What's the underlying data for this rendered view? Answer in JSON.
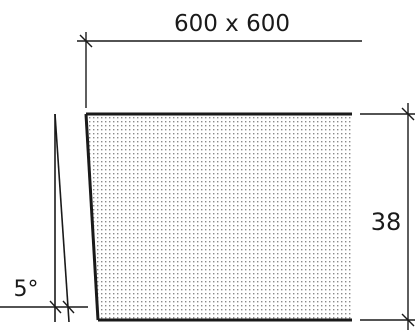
{
  "dimensions": {
    "size": "600 x 600",
    "thickness": "38",
    "taper": "5°"
  }
}
